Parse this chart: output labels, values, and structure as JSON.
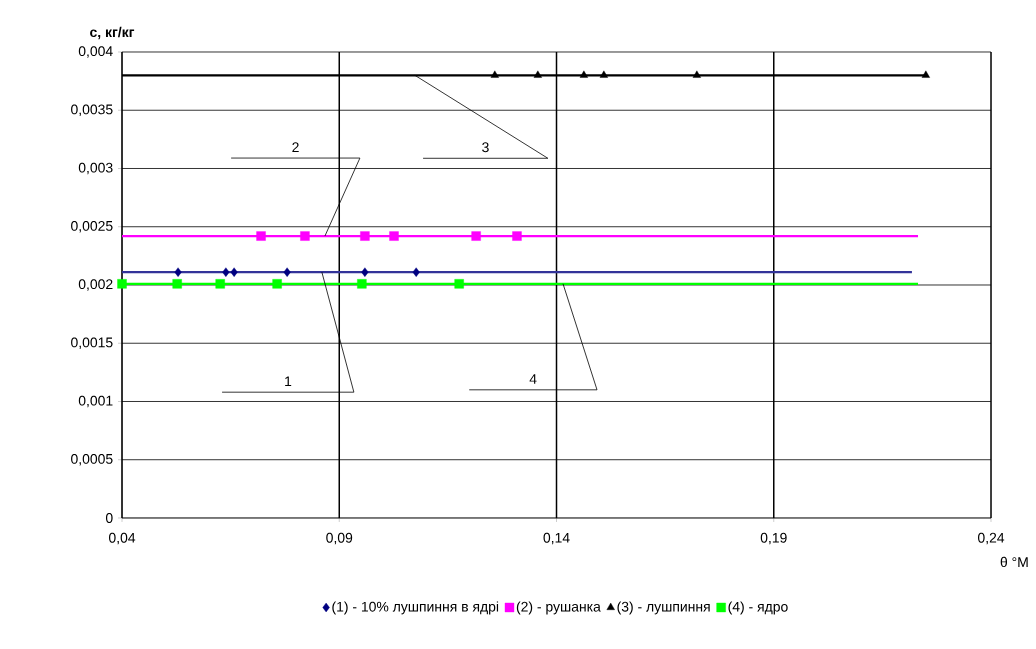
{
  "chart_data": {
    "type": "scatter",
    "xlabel": "θ °М",
    "ylabel": "c, кг/кг",
    "xlim": [
      0.04,
      0.24
    ],
    "ylim": [
      0,
      0.004
    ],
    "xticks": [
      {
        "value": 0.04,
        "label": "0,04"
      },
      {
        "value": 0.09,
        "label": "0,09"
      },
      {
        "value": 0.14,
        "label": "0,14"
      },
      {
        "value": 0.19,
        "label": "0,19"
      },
      {
        "value": 0.24,
        "label": "0,24"
      }
    ],
    "yticks": [
      0,
      {
        "value": 0.0005,
        "label": "0,0005"
      },
      {
        "value": 0.001,
        "label": "0,001"
      },
      {
        "value": 0.0015,
        "label": "0,0015"
      },
      {
        "value": 0.002,
        "label": "0,002"
      },
      {
        "value": 0.0025,
        "label": "0,0025"
      },
      {
        "value": 0.003,
        "label": "0,003"
      },
      {
        "value": 0.0035,
        "label": "0,0035"
      },
      {
        "value": 0.004,
        "label": "0,004"
      }
    ],
    "grid": true,
    "legend": "bottom",
    "series": [
      {
        "name": "(1) - 10% лушпиння в ядрі",
        "color": "#000080",
        "marker": "diamond",
        "x": [
          0.0529,
          0.0639,
          0.0658,
          0.078,
          0.0959,
          0.1077
        ],
        "values": [
          0.00211,
          0.00211,
          0.00211,
          0.00211,
          0.00211,
          0.00211
        ]
      },
      {
        "name": "(2) - рушанка",
        "color": "#ff00ff",
        "marker": "square",
        "x": [
          0.072,
          0.0821,
          0.0959,
          0.1026,
          0.1215,
          0.1309
        ],
        "values": [
          0.00242,
          0.00242,
          0.00242,
          0.00242,
          0.00242,
          0.00242
        ]
      },
      {
        "name": "(3) - лушпиння",
        "color": "#000000",
        "marker": "triangle",
        "x": [
          0.1258,
          0.1357,
          0.1463,
          0.1509,
          0.1723,
          0.225
        ],
        "values": [
          0.0038,
          0.0038,
          0.0038,
          0.0038,
          0.0038,
          0.0038
        ]
      },
      {
        "name": "(4) - ядро",
        "color": "#00ff00",
        "marker": "square",
        "x": [
          0.04,
          0.0527,
          0.0626,
          0.0757,
          0.0952,
          0.1176
        ],
        "values": [
          0.00201,
          0.00201,
          0.00201,
          0.00201,
          0.00201,
          0.00201
        ]
      },
      {
        "type": "line",
        "color": "#333399",
        "x": [
          0.04,
          0.2218
        ],
        "values": [
          0.00211,
          0.00211
        ]
      },
      {
        "type": "line",
        "color": "#ff00ff",
        "x": [
          0.04,
          0.2232
        ],
        "values": [
          0.00242,
          0.00242
        ]
      },
      {
        "type": "line",
        "color": "#000000",
        "x": [
          0.04,
          0.225
        ],
        "values": [
          0.0038,
          0.0038
        ]
      },
      {
        "type": "line",
        "color": "#00ff00",
        "x": [
          0.04,
          0.2232
        ],
        "values": [
          0.00201,
          0.00201
        ]
      }
    ],
    "annotations": [
      {
        "text": "1",
        "x": 0.086,
        "y": 0.00211
      },
      {
        "text": "2",
        "x": 0.0867,
        "y": 0.00242
      },
      {
        "text": "3",
        "x": 0.1074,
        "y": 0.0038
      },
      {
        "text": "4",
        "x": 0.1415,
        "y": 0.00201
      }
    ]
  }
}
